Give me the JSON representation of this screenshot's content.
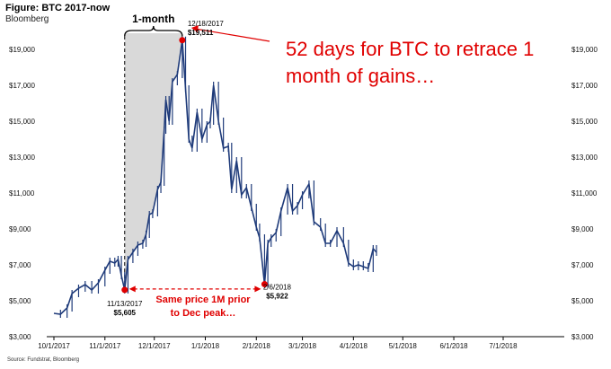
{
  "header": {
    "title": "Figure: BTC 2017-now",
    "subtitle": "Bloomberg"
  },
  "callout": {
    "line1": "52 days for BTC to retrace 1",
    "line2": "month of gains…"
  },
  "source": "Source: Fundstrat, Bloomberg",
  "colors": {
    "series": "#1f3b7a",
    "accent": "#e00000",
    "shade": "#d9d9d9"
  },
  "chart_data": {
    "type": "line",
    "y_ticks": [
      "$3,000",
      "$5,000",
      "$7,000",
      "$9,000",
      "$11,000",
      "$13,000",
      "$15,000",
      "$17,000",
      "$19,000"
    ],
    "y_tick_values": [
      3000,
      5000,
      7000,
      9000,
      11000,
      13000,
      15000,
      17000,
      19000
    ],
    "ylim": [
      3000,
      19500
    ],
    "x_ticks": [
      "10/1/2017",
      "11/1/2017",
      "12/1/2017",
      "1/1/2018",
      "2/1/2018",
      "3/1/2018",
      "4/1/2018",
      "5/1/2018",
      "6/1/2018",
      "7/1/2018"
    ],
    "x_tick_dates": [
      "2017-10-01",
      "2017-11-01",
      "2017-12-01",
      "2018-01-01",
      "2018-02-01",
      "2018-03-01",
      "2018-04-01",
      "2018-05-01",
      "2018-06-01",
      "2018-07-01"
    ],
    "series": [
      {
        "points": [
          [
            "2017-10-01",
            4300
          ],
          [
            "2017-10-05",
            4250
          ],
          [
            "2017-10-09",
            4600
          ],
          [
            "2017-10-12",
            5400
          ],
          [
            "2017-10-16",
            5700
          ],
          [
            "2017-10-20",
            5900
          ],
          [
            "2017-10-24",
            5600
          ],
          [
            "2017-10-28",
            6000
          ],
          [
            "2017-11-01",
            6700
          ],
          [
            "2017-11-04",
            7200
          ],
          [
            "2017-11-07",
            7100
          ],
          [
            "2017-11-09",
            7300
          ],
          [
            "2017-11-11",
            6400
          ],
          [
            "2017-11-13",
            5605
          ],
          [
            "2017-11-15",
            7300
          ],
          [
            "2017-11-18",
            7700
          ],
          [
            "2017-11-21",
            8100
          ],
          [
            "2017-11-24",
            8200
          ],
          [
            "2017-11-26",
            8700
          ],
          [
            "2017-11-28",
            9800
          ],
          [
            "2017-11-30",
            9900
          ],
          [
            "2017-12-03",
            11200
          ],
          [
            "2017-12-05",
            11600
          ],
          [
            "2017-12-07",
            14500
          ],
          [
            "2017-12-08",
            16200
          ],
          [
            "2017-12-10",
            15000
          ],
          [
            "2017-12-12",
            17200
          ],
          [
            "2017-12-15",
            17600
          ],
          [
            "2017-12-18",
            19511
          ],
          [
            "2017-12-20",
            16800
          ],
          [
            "2017-12-22",
            14000
          ],
          [
            "2017-12-24",
            13500
          ],
          [
            "2017-12-27",
            15500
          ],
          [
            "2017-12-30",
            14000
          ],
          [
            "2018-01-02",
            14800
          ],
          [
            "2018-01-04",
            15000
          ],
          [
            "2018-01-06",
            17000
          ],
          [
            "2018-01-09",
            15000
          ],
          [
            "2018-01-12",
            13500
          ],
          [
            "2018-01-15",
            13600
          ],
          [
            "2018-01-17",
            11200
          ],
          [
            "2018-01-20",
            12800
          ],
          [
            "2018-01-23",
            10900
          ],
          [
            "2018-01-26",
            11300
          ],
          [
            "2018-01-29",
            10200
          ],
          [
            "2018-02-01",
            9100
          ],
          [
            "2018-02-03",
            8500
          ],
          [
            "2018-02-06",
            5922
          ],
          [
            "2018-02-08",
            8200
          ],
          [
            "2018-02-10",
            8500
          ],
          [
            "2018-02-13",
            8800
          ],
          [
            "2018-02-16",
            10000
          ],
          [
            "2018-02-20",
            11300
          ],
          [
            "2018-02-23",
            10000
          ],
          [
            "2018-02-26",
            10300
          ],
          [
            "2018-03-01",
            10900
          ],
          [
            "2018-03-05",
            11500
          ],
          [
            "2018-03-08",
            9400
          ],
          [
            "2018-03-12",
            9100
          ],
          [
            "2018-03-15",
            8200
          ],
          [
            "2018-03-18",
            8200
          ],
          [
            "2018-03-22",
            8900
          ],
          [
            "2018-03-26",
            8200
          ],
          [
            "2018-03-29",
            7100
          ],
          [
            "2018-04-01",
            6900
          ],
          [
            "2018-04-04",
            7000
          ],
          [
            "2018-04-07",
            6900
          ],
          [
            "2018-04-10",
            6800
          ],
          [
            "2018-04-13",
            7900
          ],
          [
            "2018-04-15",
            7700
          ]
        ]
      }
    ],
    "annotations": [
      {
        "date": "2017-11-13",
        "value": 5605,
        "label_date": "11/13/2017",
        "label_value": "$5,605"
      },
      {
        "date": "2017-12-18",
        "value": 19511,
        "label_date": "12/18/2017",
        "label_value": "$19,511"
      },
      {
        "date": "2018-02-06",
        "value": 5922,
        "label_date": "2/6/2018",
        "label_value": "$5,922"
      }
    ],
    "bracket_label": "1-month",
    "bottom_note_line1": "Same price 1M prior",
    "bottom_note_line2": "to Dec peak…"
  }
}
